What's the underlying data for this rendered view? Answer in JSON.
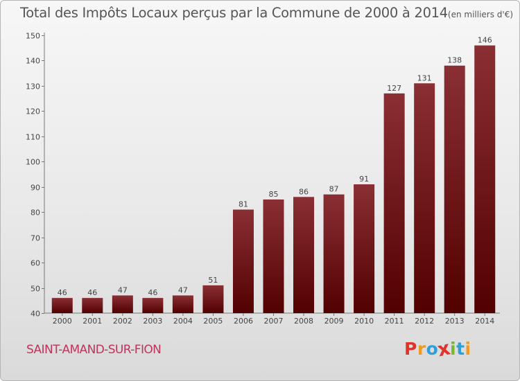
{
  "title": "Total des Impôts Locaux perçus par la Commune de 2000 à 2014",
  "title_unit": "(en milliers d'€)",
  "commune": "SAINT-AMAND-SUR-FION",
  "logo": {
    "letters": [
      "P",
      "r",
      "o",
      "x",
      "i",
      "t",
      "i"
    ],
    "colors": [
      "#e0342a",
      "#f29a1d",
      "#2f9fd8",
      "#e0342a",
      "#76b82a",
      "#2f9fd8",
      "#f29a1d"
    ]
  },
  "colors": {
    "bar_top": "#8a2f34",
    "bar_bottom": "#520000",
    "axis": "#777777"
  },
  "chart_data": {
    "type": "bar",
    "title": "Total des Impôts Locaux perçus par la Commune de 2000 à 2014",
    "ylabel": "en milliers d'€",
    "xlabel": "",
    "categories": [
      "2000",
      "2001",
      "2002",
      "2003",
      "2004",
      "2005",
      "2006",
      "2007",
      "2008",
      "2009",
      "2010",
      "2011",
      "2012",
      "2013",
      "2014"
    ],
    "values": [
      46,
      46,
      47,
      46,
      47,
      51,
      81,
      85,
      86,
      87,
      91,
      127,
      131,
      138,
      146
    ],
    "ylim": [
      40,
      150
    ],
    "yticks": [
      40,
      50,
      60,
      70,
      80,
      90,
      100,
      110,
      120,
      130,
      140,
      150
    ],
    "grid": false
  }
}
